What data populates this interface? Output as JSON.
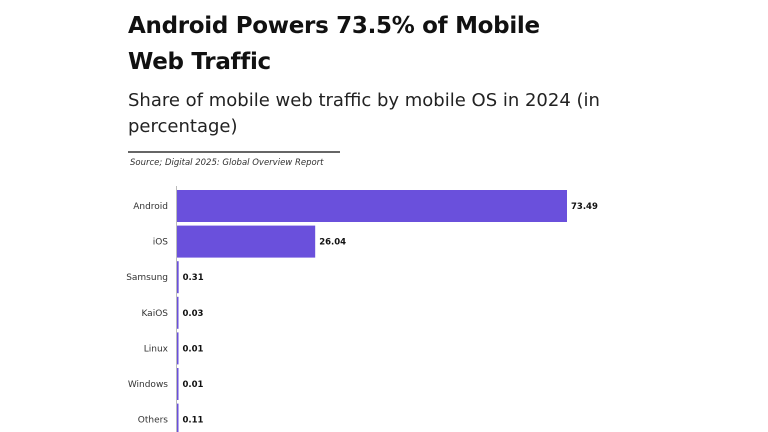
{
  "chart_data": {
    "type": "bar",
    "orientation": "horizontal",
    "title": "Android Powers 73.5% of Mobile Web Traffic",
    "subtitle": "Share of mobile web traffic by mobile OS in 2024 (in percentage)",
    "source": "Source; Digital 2025: Global Overview Report",
    "categories": [
      "Android",
      "iOS",
      "Samsung",
      "KaiOS",
      "Linux",
      "Windows",
      "Others"
    ],
    "values": [
      73.49,
      26.04,
      0.31,
      0.03,
      0.01,
      0.01,
      0.11
    ],
    "value_labels": [
      "73.49",
      "26.04",
      "0.31",
      "0.03",
      "0.01",
      "0.01",
      "0.11"
    ],
    "xlim": [
      0,
      73.49
    ],
    "grid": false,
    "bar_color": "#6a50dc"
  }
}
